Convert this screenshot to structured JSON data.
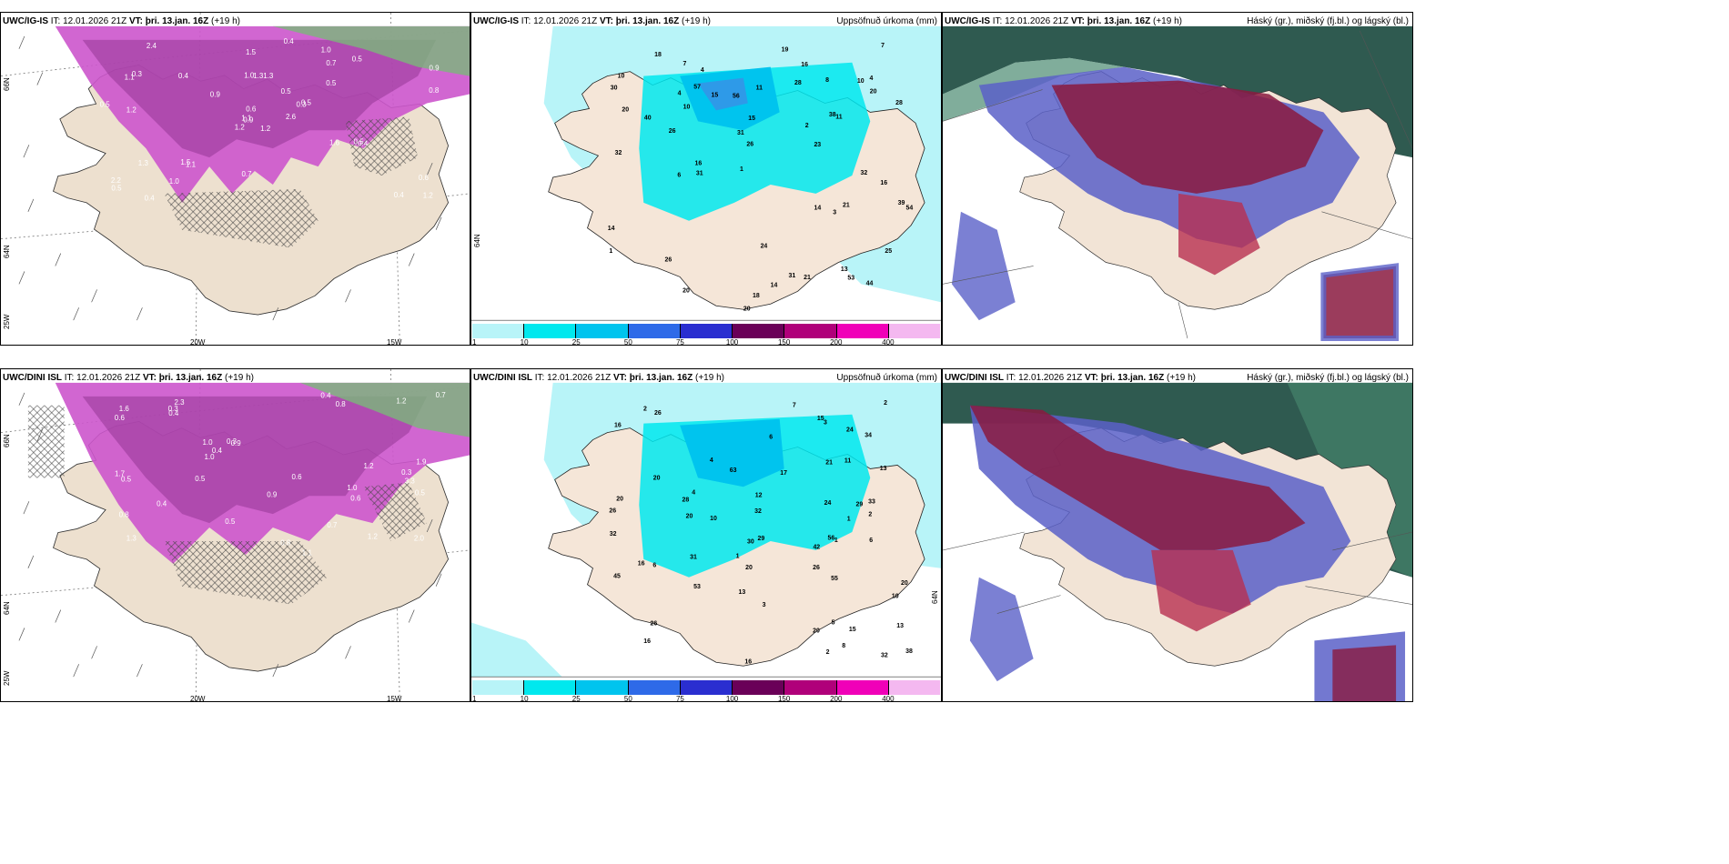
{
  "panels": {
    "top_left": {
      "model": "UWC/IG-IS",
      "it_label": "IT:",
      "it": "12.01.2026 21Z",
      "vt_label": "VT:",
      "vt": "þri. 13.jan. 16Z",
      "lead": "(+19 h)"
    },
    "top_mid": {
      "model": "UWC/IG-IS",
      "it_label": "IT:",
      "it": "12.01.2026 21Z",
      "vt_label": "VT:",
      "vt": "þri. 13.jan. 16Z",
      "lead": "(+19 h)",
      "right": "Uppsöfnuð úrkoma (mm)"
    },
    "top_right": {
      "model": "UWC/IG-IS",
      "it_label": "IT:",
      "it": "12.01.2026 21Z",
      "vt_label": "VT:",
      "vt": "þri. 13.jan. 16Z",
      "lead": "(+19 h)",
      "right": "Háský (gr.), miðský (fj.bl.) og lágský (bl.)"
    },
    "bottom_left": {
      "model": "UWC/DINI ISL",
      "it_label": "IT:",
      "it": "12.01.2026 21Z",
      "vt_label": "VT:",
      "vt": "þri. 13.jan. 16Z",
      "lead": "(+19 h)"
    },
    "bottom_mid": {
      "model": "UWC/DINI ISL",
      "it_label": "IT:",
      "it": "12.01.2026 21Z",
      "vt_label": "VT:",
      "vt": "þri. 13.jan. 16Z",
      "lead": "(+19 h)",
      "right": "Uppsöfnuð úrkoma (mm)"
    },
    "bottom_right": {
      "model": "UWC/DINI ISL",
      "it_label": "IT:",
      "it": "12.01.2026 21Z",
      "vt_label": "VT:",
      "vt": "þri. 13.jan. 16Z",
      "lead": "(+19 h)",
      "right": "Háský (gr.), miðský (fj.bl.) og lágský (bl.)"
    }
  },
  "axes": {
    "lat_66": "66N",
    "lat_64": "64N",
    "lon_20": "20W",
    "lon_15": "15W",
    "lon_25": "25W",
    "mid_lat": "64N"
  },
  "colorbar": {
    "ticks": [
      "1",
      "10",
      "25",
      "50",
      "75",
      "100",
      "150",
      "200",
      "400"
    ],
    "colors": [
      "#b8f4f8",
      "#00e8ee",
      "#00c4ee",
      "#2e6ae8",
      "#2a2ed0",
      "#6a0058",
      "#b0007a",
      "#f000b8",
      "#f4b8f0"
    ]
  },
  "precip_labels_top": [
    "20",
    "10",
    "23",
    "18",
    "10",
    "20",
    "14",
    "31",
    "4",
    "54",
    "39",
    "57",
    "38",
    "26",
    "32",
    "20",
    "16",
    "56",
    "44",
    "31",
    "53",
    "16",
    "26",
    "24",
    "8",
    "26",
    "20",
    "16",
    "18",
    "6",
    "14",
    "21",
    "7",
    "40",
    "10",
    "7",
    "15",
    "28",
    "19",
    "1",
    "11",
    "4",
    "31",
    "13",
    "14",
    "28",
    "30",
    "32",
    "25",
    "21",
    "15",
    "2",
    "1",
    "3",
    "11",
    "4"
  ],
  "precip_labels_bottom": [
    "26",
    "20",
    "29",
    "10",
    "20",
    "11",
    "33",
    "12",
    "13",
    "8",
    "56",
    "42",
    "45",
    "55",
    "53",
    "32",
    "34",
    "16",
    "24",
    "63",
    "20",
    "32",
    "24",
    "15",
    "2",
    "26",
    "20",
    "21",
    "38",
    "6",
    "13",
    "7",
    "20",
    "5",
    "10",
    "16",
    "17",
    "29",
    "1",
    "2",
    "1",
    "31",
    "6",
    "16",
    "26",
    "4",
    "2",
    "4",
    "30",
    "26",
    "13",
    "28",
    "32",
    "15",
    "16",
    "20",
    "3",
    "2",
    "1",
    "3",
    "6"
  ],
  "thickness_labels_top": [
    "1.2",
    "1.1",
    "0.9",
    "2.2",
    "0.3",
    "1.1",
    "1.0",
    "1.3",
    "0.7",
    "2.6",
    "2.4",
    "1.2",
    "1.2",
    "0.9",
    "1.2",
    "0.5",
    "0.4",
    "1.0",
    "0.5",
    "1.3",
    "0.9",
    "0.5",
    "1.0",
    "1.3",
    "0.5",
    "0.4",
    "0.3",
    "1.5",
    "0.5",
    "1.6",
    "0.8",
    "1.1",
    "0.7",
    "0.6",
    "0.4",
    "0.5",
    "1.5",
    "0.4",
    "0.6",
    "0.5",
    "0.4"
  ],
  "thickness_labels_bottom": [
    "1.0",
    "3.3",
    "1.3",
    "2.3",
    "0.9",
    "1.2",
    "0.8",
    "0.8",
    "1.0",
    "1.1",
    "0.6",
    "1.7",
    "1.6",
    "2.0",
    "0.5",
    "1.9",
    "0.9",
    "0.6",
    "0.3",
    "0.4",
    "0.7",
    "1.2",
    "1.0",
    "0.5",
    "0.4",
    "0.3",
    "0.6",
    "0.5",
    "0.4",
    "1.2",
    "0.8",
    "0.7",
    "0.4",
    "0.5",
    "0.3"
  ]
}
